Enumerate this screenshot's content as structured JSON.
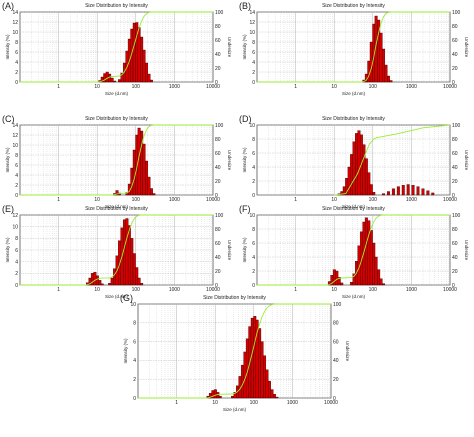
{
  "figure": {
    "background": "#ffffff"
  },
  "style": {
    "bar_fill": "#d40000",
    "bar_stroke": "#2a0000",
    "cumulative_line": "#99ee33",
    "grid": "#b0b0b0",
    "axis": "#555555"
  },
  "chart_data": [
    {
      "panel": "(A)",
      "type": "bar",
      "title": "Size Distribution by Intensity",
      "xlabel": "Size (d.nm)",
      "ylabel": "Intensity (%)",
      "y2label": "Undersize",
      "xscale": "log",
      "xlim": [
        0.1,
        10000
      ],
      "xticks": [
        "1",
        "10",
        "100",
        "1000",
        "10000"
      ],
      "ylim": [
        0,
        14
      ],
      "yticks": [
        "0",
        "2",
        "4",
        "6",
        "8",
        "10",
        "12",
        "14"
      ],
      "y2ticks": [
        "0",
        "20",
        "40",
        "60",
        "80",
        "100"
      ],
      "grid": true,
      "series": [
        {
          "x": [
            11.7,
            13.5,
            15.7,
            18.2,
            21.0,
            24.4,
            28.2
          ],
          "values": [
            0.3,
            1.0,
            1.7,
            2.0,
            1.6,
            0.8,
            0.2
          ]
        },
        {
          "x": [
            37.8,
            43.8,
            50.7,
            58.8,
            68.1,
            78.8,
            91.3,
            106,
            122,
            142,
            164,
            190,
            220,
            255
          ],
          "values": [
            0.5,
            1.8,
            3.8,
            6.2,
            8.6,
            10.6,
            11.8,
            11.9,
            10.9,
            9.0,
            6.4,
            3.8,
            1.6,
            0.4
          ]
        }
      ],
      "cumulative_to": 255
    },
    {
      "panel": "(B)",
      "type": "bar",
      "title": "Size Distribution by Intensity",
      "xlabel": "Size (d.nm)",
      "ylabel": "Intensity (%)",
      "y2label": "Undersize",
      "xscale": "log",
      "xlim": [
        0.1,
        10000
      ],
      "xticks": [
        "1",
        "10",
        "100",
        "1000",
        "10000"
      ],
      "ylim": [
        0,
        14
      ],
      "yticks": [
        "0",
        "2",
        "4",
        "6",
        "8",
        "10",
        "12",
        "14"
      ],
      "y2ticks": [
        "0",
        "20",
        "40",
        "60",
        "80",
        "100"
      ],
      "grid": true,
      "series": [
        {
          "x": [
            58.8,
            68.1,
            78.8,
            91.3,
            106,
            122,
            142,
            164,
            190,
            220,
            255,
            295
          ],
          "values": [
            0.4,
            1.6,
            4.2,
            8.0,
            11.6,
            13.2,
            12.4,
            9.8,
            6.6,
            3.4,
            1.2,
            0.3
          ]
        }
      ],
      "cumulative_to": 295
    },
    {
      "panel": "(C)",
      "type": "bar",
      "title": "Size Distribution by Intensity",
      "xlabel": "Size (d.nm)",
      "ylabel": "Intensity (%)",
      "y2label": "Undersize",
      "xscale": "log",
      "xlim": [
        0.1,
        10000
      ],
      "xticks": [
        "1",
        "10",
        "100",
        "1000",
        "10000"
      ],
      "ylim": [
        0,
        14
      ],
      "yticks": [
        "0",
        "2",
        "4",
        "6",
        "8",
        "10",
        "12",
        "14"
      ],
      "y2ticks": [
        "0",
        "20",
        "40",
        "60",
        "80",
        "100"
      ],
      "grid": true,
      "series": [
        {
          "x": [
            28.2,
            32.7,
            37.8
          ],
          "values": [
            0.3,
            0.9,
            0.4
          ]
        },
        {
          "x": [
            58.8,
            68.1,
            78.8,
            91.3,
            106,
            122,
            142,
            164,
            190,
            220,
            255,
            295
          ],
          "values": [
            0.5,
            2.2,
            5.4,
            9.0,
            12.0,
            13.4,
            12.8,
            10.2,
            6.8,
            3.6,
            1.3,
            0.3
          ]
        }
      ],
      "cumulative_to": 295
    },
    {
      "panel": "(D)",
      "type": "bar",
      "title": "Size Distribution by Intensity",
      "xlabel": "Size (d.nm)",
      "ylabel": "Intensity (%)",
      "y2label": "Undersize",
      "xscale": "log",
      "xlim": [
        0.1,
        10000
      ],
      "xticks": [
        "1",
        "10",
        "100",
        "1000",
        "10000"
      ],
      "ylim": [
        0,
        10
      ],
      "yticks": [
        "0",
        "2",
        "4",
        "6",
        "8",
        "10"
      ],
      "y2ticks": [
        "0",
        "20",
        "40",
        "60",
        "80",
        "100"
      ],
      "grid": true,
      "series": [
        {
          "x": [
            13.5,
            15.7,
            18.2,
            21.0,
            24.4,
            28.2,
            32.7,
            37.8,
            43.8,
            50.7,
            58.8,
            68.1,
            78.8,
            91.3,
            106
          ],
          "values": [
            0.2,
            0.5,
            1.2,
            2.4,
            4.0,
            5.8,
            7.6,
            8.8,
            9.2,
            8.6,
            7.2,
            5.2,
            3.2,
            1.5,
            0.4
          ]
        },
        {
          "x": [
            190,
            255,
            342,
            459,
            615,
            825,
            1106,
            1484,
            1990,
            2669,
            3580
          ],
          "values": [
            0.2,
            0.5,
            0.9,
            1.2,
            1.4,
            1.5,
            1.4,
            1.2,
            0.9,
            0.6,
            0.3
          ]
        }
      ],
      "cumulative": {
        "x": [
          10,
          20,
          40,
          80,
          106,
          130,
          200,
          400,
          1000,
          2000,
          10000
        ],
        "values": [
          0,
          2,
          30,
          72,
          80,
          82,
          84,
          87,
          92,
          96,
          100
        ]
      }
    },
    {
      "panel": "(E)",
      "type": "bar",
      "title": "Size Distribution by Intensity",
      "xlabel": "Size (d.nm)",
      "ylabel": "Intensity (%)",
      "y2label": "Undersize",
      "xscale": "log",
      "xlim": [
        0.1,
        10000
      ],
      "xticks": [
        "1",
        "10",
        "100",
        "1000",
        "10000"
      ],
      "ylim": [
        0,
        12
      ],
      "yticks": [
        "0",
        "2",
        "4",
        "6",
        "8",
        "10",
        "12"
      ],
      "y2ticks": [
        "0",
        "20",
        "40",
        "60",
        "80",
        "100"
      ],
      "grid": true,
      "series": [
        {
          "x": [
            5.6,
            6.5,
            7.5,
            8.7,
            10.1,
            11.7,
            13.5
          ],
          "values": [
            0.4,
            1.2,
            2.0,
            2.2,
            1.6,
            0.8,
            0.2
          ]
        },
        {
          "x": [
            21.0,
            24.4,
            28.2,
            32.7,
            37.8,
            43.8,
            50.7,
            58.8,
            68.1,
            78.8,
            91.3,
            106,
            122,
            142
          ],
          "values": [
            0.3,
            1.2,
            2.8,
            5.0,
            7.6,
            9.8,
            11.2,
            11.4,
            10.2,
            8.0,
            5.4,
            3.0,
            1.2,
            0.3
          ]
        }
      ],
      "cumulative_to": 142
    },
    {
      "panel": "(F)",
      "type": "bar",
      "title": "Size Distribution by Intensity",
      "xlabel": "Size (d.nm)",
      "ylabel": "Intensity (%)",
      "y2label": "Undersize",
      "xscale": "log",
      "xlim": [
        0.1,
        10000
      ],
      "xticks": [
        "1",
        "10",
        "100",
        "1000",
        "10000"
      ],
      "ylim": [
        0,
        10
      ],
      "yticks": [
        "0",
        "2",
        "4",
        "6",
        "8",
        "10"
      ],
      "y2ticks": [
        "0",
        "20",
        "40",
        "60",
        "80",
        "100"
      ],
      "grid": true,
      "series": [
        {
          "x": [
            7.5,
            8.7,
            10.1,
            11.7,
            13.5,
            15.7
          ],
          "values": [
            0.5,
            1.4,
            2.2,
            2.0,
            1.1,
            0.3
          ]
        },
        {
          "x": [
            28.2,
            32.7,
            37.8,
            43.8,
            50.7,
            58.8,
            68.1,
            78.8,
            91.3,
            106,
            122,
            142,
            164,
            190
          ],
          "values": [
            0.4,
            1.6,
            3.4,
            5.6,
            7.6,
            9.0,
            9.6,
            9.2,
            7.8,
            6.0,
            4.0,
            2.2,
            0.9,
            0.2
          ]
        }
      ],
      "cumulative_to": 190
    },
    {
      "panel": "(G)",
      "type": "bar",
      "title": "Size Distribution by Intensity",
      "xlabel": "Size (d.nm)",
      "ylabel": "Intensity (%)",
      "y2label": "Undersize",
      "xscale": "log",
      "xlim": [
        0.1,
        10000
      ],
      "xticks": [
        "1",
        "10",
        "100",
        "1000",
        "10000"
      ],
      "ylim": [
        0,
        10
      ],
      "yticks": [
        "0",
        "2",
        "4",
        "6",
        "8",
        "10"
      ],
      "y2ticks": [
        "0",
        "20",
        "40",
        "60",
        "80",
        "100"
      ],
      "grid": true,
      "series": [
        {
          "x": [
            6.5,
            7.5,
            8.7,
            10.1,
            11.7,
            13.5
          ],
          "values": [
            0.2,
            0.5,
            0.8,
            0.9,
            0.6,
            0.2
          ]
        },
        {
          "x": [
            28.2,
            32.7,
            37.8,
            43.8,
            50.7,
            58.8,
            68.1,
            78.8,
            91.3,
            106,
            122,
            142,
            164,
            190,
            220,
            255,
            295,
            342,
            396
          ],
          "values": [
            0.2,
            0.6,
            1.3,
            2.3,
            3.5,
            4.9,
            6.3,
            7.6,
            8.5,
            8.7,
            8.3,
            7.4,
            6.0,
            4.5,
            3.0,
            1.8,
            0.9,
            0.4,
            0.1
          ]
        }
      ],
      "cumulative_to": 396
    }
  ]
}
